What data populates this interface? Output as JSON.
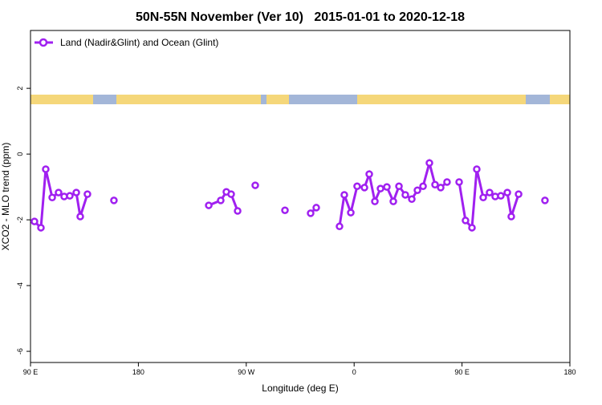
{
  "chart_data": {
    "type": "line",
    "title": "50N-55N November (Ver 10)   2015-01-01 to 2020-12-18",
    "x_label": "Longitude (deg E)",
    "y_label": "XCO2 - MLO trend (ppm)",
    "x": [
      93.3,
      98.7,
      102.7,
      108.1,
      113.4,
      118.1,
      122.8,
      128.2,
      131.5,
      137.5,
      null,
      159.6,
      null,
      238.7,
      248.7,
      253.4,
      257.4,
      262.8,
      null,
      277.5,
      null,
      302.3,
      null,
      323.7,
      328.4,
      null,
      347.8,
      351.8,
      357.2,
      362.5,
      368.6,
      372.6,
      377.3,
      382.0,
      387.3,
      392.7,
      397.4,
      402.7,
      408.1,
      412.8,
      417.5,
      422.8,
      427.5,
      432.2,
      437.5,
      null,
      447.6,
      452.9,
      458.3,
      462.3,
      467.7,
      473.0,
      477.7,
      482.4,
      487.8,
      491.1,
      497.2,
      null,
      519.2
    ],
    "series": [
      {
        "name": "Land (Nadir&Glint) and Ocean (Glint)",
        "color": "#a020f0",
        "values": [
          -2.05,
          -2.24,
          -0.46,
          -1.32,
          -1.17,
          -1.29,
          -1.27,
          -1.17,
          -1.9,
          -1.22,
          null,
          -1.41,
          null,
          -1.56,
          -1.41,
          -1.15,
          -1.22,
          -1.73,
          null,
          -0.95,
          null,
          -1.71,
          null,
          -1.8,
          -1.63,
          null,
          -2.2,
          -1.24,
          -1.78,
          -0.98,
          -1.02,
          -0.61,
          -1.44,
          -1.05,
          -1.0,
          -1.44,
          -0.98,
          -1.24,
          -1.37,
          -1.1,
          -0.98,
          -0.27,
          -0.93,
          -1.02,
          -0.85,
          null,
          -0.85,
          -2.02,
          -2.24,
          -0.46,
          -1.32,
          -1.17,
          -1.29,
          -1.27,
          -1.17,
          -1.9,
          -1.22,
          null,
          -1.41
        ]
      }
    ],
    "xlim": [
      90,
      540
    ],
    "xticks": [
      {
        "value": 90,
        "label": "90 E"
      },
      {
        "value": 180,
        "label": "180"
      },
      {
        "value": 270,
        "label": "90 W"
      },
      {
        "value": 360,
        "label": "0"
      },
      {
        "value": 450,
        "label": "90 E"
      },
      {
        "value": 540,
        "label": "180"
      }
    ],
    "ylim": [
      -6.34,
      3.76
    ],
    "yticks": [
      2,
      0,
      -2,
      -4,
      -6
    ],
    "legend": "top-left"
  }
}
